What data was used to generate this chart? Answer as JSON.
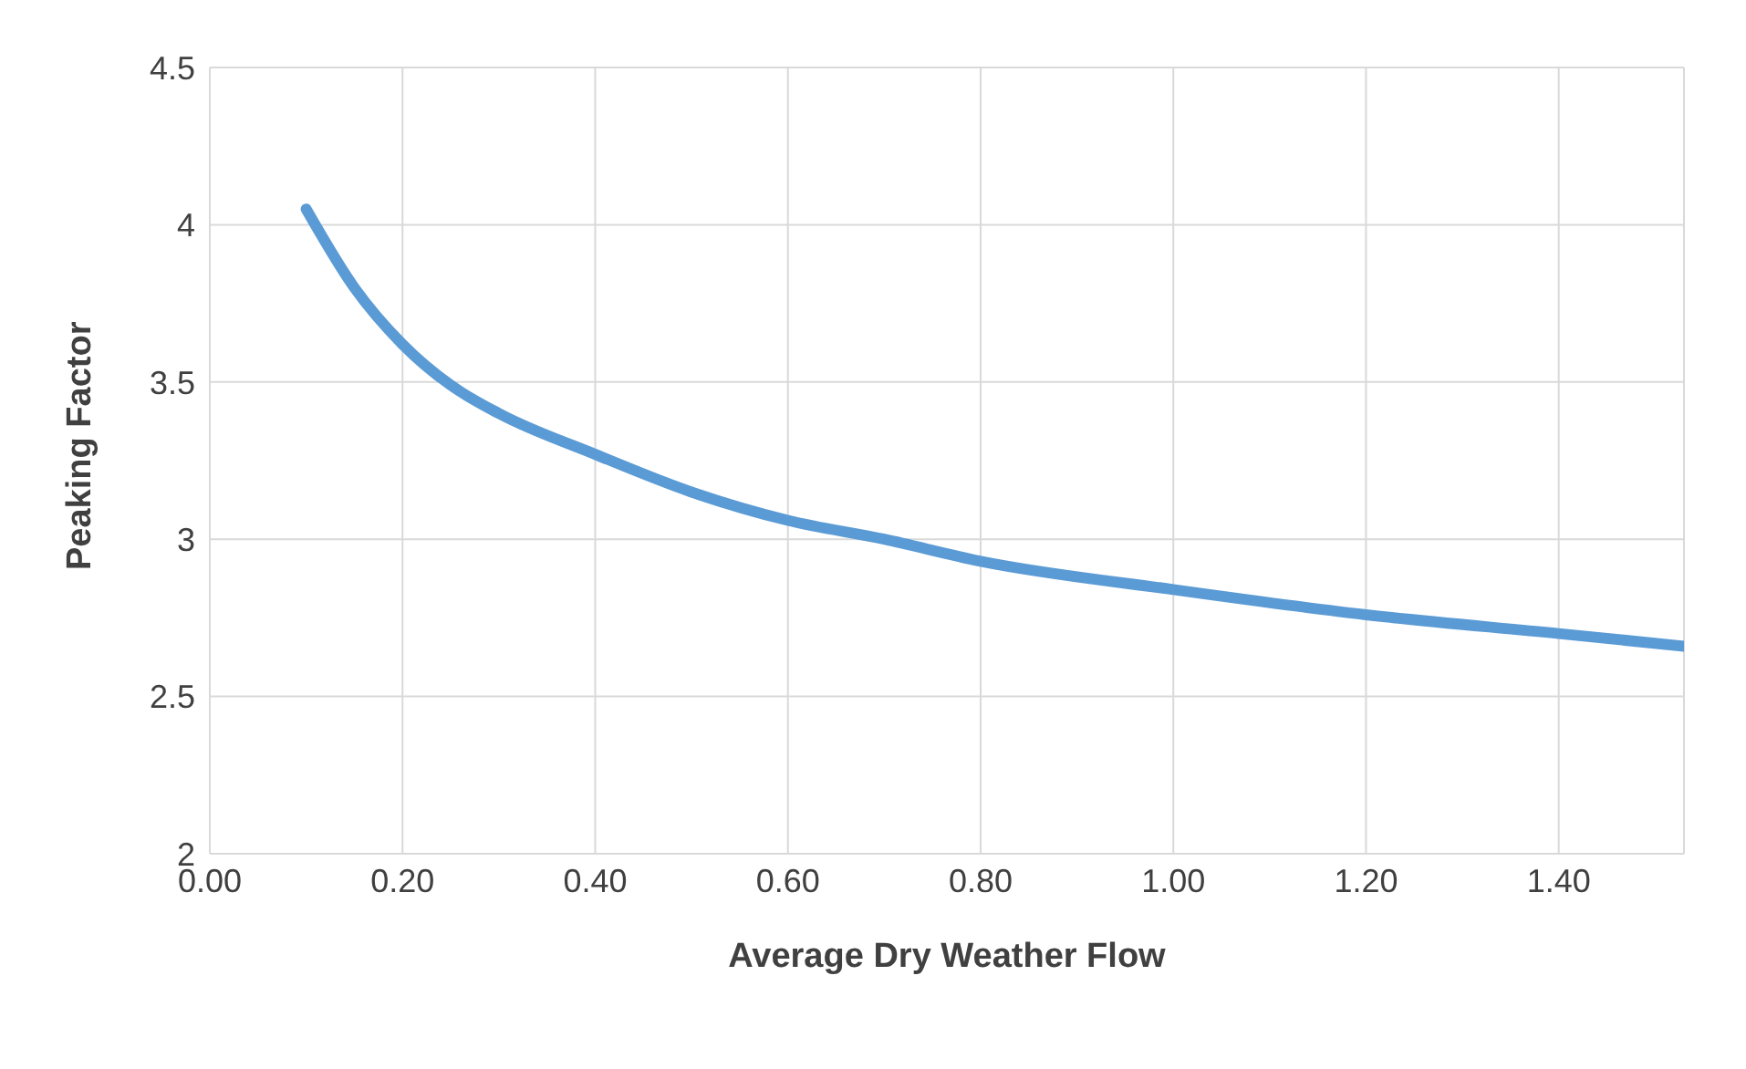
{
  "chart_data": {
    "type": "line",
    "xlabel": "Average Dry Weather Flow",
    "ylabel": "Peaking Factor",
    "x": [
      0.1,
      0.15,
      0.2,
      0.25,
      0.3,
      0.4,
      0.5,
      0.6,
      0.7,
      0.8,
      1.0,
      1.2,
      1.4,
      1.53
    ],
    "series": [
      {
        "color": "#5b9bd5",
        "values": [
          4.05,
          3.8,
          3.62,
          3.49,
          3.4,
          3.27,
          3.15,
          3.06,
          3.0,
          2.93,
          2.84,
          2.76,
          2.7,
          2.66
        ]
      }
    ],
    "xlim": [
      0,
      1.53
    ],
    "xticks": [
      {
        "value": 0,
        "label": "0.00"
      },
      {
        "value": 0.2,
        "label": "0.20"
      },
      {
        "value": 0.4,
        "label": "0.40"
      },
      {
        "value": 0.6,
        "label": "0.60"
      },
      {
        "value": 0.8,
        "label": "0.80"
      },
      {
        "value": 1.0,
        "label": "1.00"
      },
      {
        "value": 1.2,
        "label": "1.20"
      },
      {
        "value": 1.4,
        "label": "1.40"
      }
    ],
    "ylim": [
      2,
      4.5
    ],
    "yticks": [
      2,
      2.5,
      3,
      3.5,
      4,
      4.5
    ],
    "grid": true,
    "marker": "none",
    "line_style": "solid"
  }
}
